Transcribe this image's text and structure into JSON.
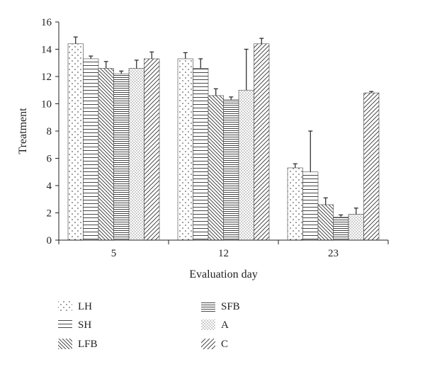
{
  "chart_data": {
    "type": "bar",
    "xlabel": "Evaluation day",
    "ylabel": "Treatment",
    "ylim": [
      0,
      16
    ],
    "yticks": [
      0,
      2,
      4,
      6,
      8,
      10,
      12,
      14,
      16
    ],
    "categories": [
      "5",
      "12",
      "23"
    ],
    "grid": false,
    "legend_position": "bottom",
    "error_bars": "upper",
    "series": [
      {
        "name": "LH",
        "pattern": "dots-sparse",
        "values": [
          14.4,
          13.3,
          5.3
        ],
        "errors": [
          0.5,
          0.45,
          0.3
        ]
      },
      {
        "name": "SH",
        "pattern": "horizontal-lines",
        "values": [
          13.3,
          12.6,
          5.0
        ],
        "errors": [
          0.2,
          0.7,
          3.0
        ]
      },
      {
        "name": "LFB",
        "pattern": "diagonal-back",
        "values": [
          12.6,
          10.6,
          2.6
        ],
        "errors": [
          0.5,
          0.5,
          0.5
        ]
      },
      {
        "name": "SFB",
        "pattern": "horizontal-dense",
        "values": [
          12.2,
          10.3,
          1.7
        ],
        "errors": [
          0.2,
          0.2,
          0.15
        ]
      },
      {
        "name": "A",
        "pattern": "dots-dense",
        "values": [
          12.6,
          11.0,
          1.9
        ],
        "errors": [
          0.6,
          3.0,
          0.45
        ]
      },
      {
        "name": "C",
        "pattern": "diagonal-forward",
        "values": [
          13.3,
          14.4,
          10.8
        ],
        "errors": [
          0.5,
          0.4,
          0.1
        ]
      }
    ]
  }
}
